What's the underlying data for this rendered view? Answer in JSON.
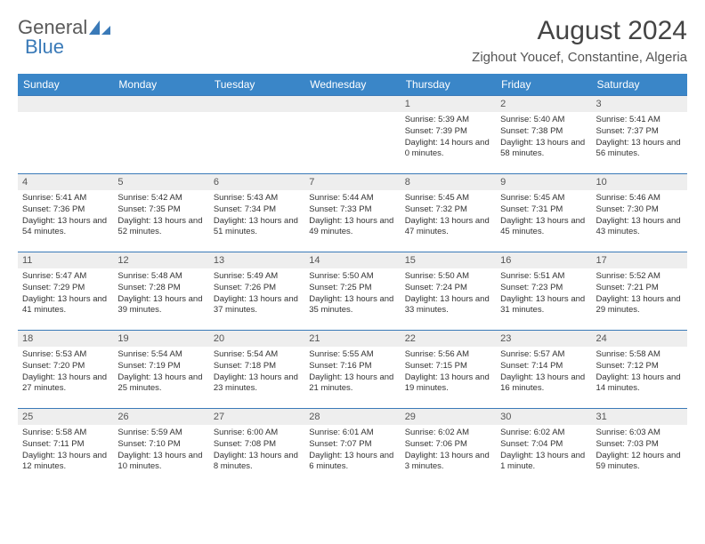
{
  "logo": {
    "text_gray": "General",
    "text_blue": "Blue"
  },
  "header": {
    "month_title": "August 2024",
    "location": "Zighout Youcef, Constantine, Algeria"
  },
  "colors": {
    "header_bg": "#3a86c8",
    "header_text": "#ffffff",
    "border": "#3a7ab8",
    "daynum_bg": "#eeeeee",
    "body_text": "#333333"
  },
  "weekdays": [
    "Sunday",
    "Monday",
    "Tuesday",
    "Wednesday",
    "Thursday",
    "Friday",
    "Saturday"
  ],
  "first_weekday_index": 4,
  "days": [
    {
      "n": 1,
      "sunrise": "5:39 AM",
      "sunset": "7:39 PM",
      "daylight": "14 hours and 0 minutes."
    },
    {
      "n": 2,
      "sunrise": "5:40 AM",
      "sunset": "7:38 PM",
      "daylight": "13 hours and 58 minutes."
    },
    {
      "n": 3,
      "sunrise": "5:41 AM",
      "sunset": "7:37 PM",
      "daylight": "13 hours and 56 minutes."
    },
    {
      "n": 4,
      "sunrise": "5:41 AM",
      "sunset": "7:36 PM",
      "daylight": "13 hours and 54 minutes."
    },
    {
      "n": 5,
      "sunrise": "5:42 AM",
      "sunset": "7:35 PM",
      "daylight": "13 hours and 52 minutes."
    },
    {
      "n": 6,
      "sunrise": "5:43 AM",
      "sunset": "7:34 PM",
      "daylight": "13 hours and 51 minutes."
    },
    {
      "n": 7,
      "sunrise": "5:44 AM",
      "sunset": "7:33 PM",
      "daylight": "13 hours and 49 minutes."
    },
    {
      "n": 8,
      "sunrise": "5:45 AM",
      "sunset": "7:32 PM",
      "daylight": "13 hours and 47 minutes."
    },
    {
      "n": 9,
      "sunrise": "5:45 AM",
      "sunset": "7:31 PM",
      "daylight": "13 hours and 45 minutes."
    },
    {
      "n": 10,
      "sunrise": "5:46 AM",
      "sunset": "7:30 PM",
      "daylight": "13 hours and 43 minutes."
    },
    {
      "n": 11,
      "sunrise": "5:47 AM",
      "sunset": "7:29 PM",
      "daylight": "13 hours and 41 minutes."
    },
    {
      "n": 12,
      "sunrise": "5:48 AM",
      "sunset": "7:28 PM",
      "daylight": "13 hours and 39 minutes."
    },
    {
      "n": 13,
      "sunrise": "5:49 AM",
      "sunset": "7:26 PM",
      "daylight": "13 hours and 37 minutes."
    },
    {
      "n": 14,
      "sunrise": "5:50 AM",
      "sunset": "7:25 PM",
      "daylight": "13 hours and 35 minutes."
    },
    {
      "n": 15,
      "sunrise": "5:50 AM",
      "sunset": "7:24 PM",
      "daylight": "13 hours and 33 minutes."
    },
    {
      "n": 16,
      "sunrise": "5:51 AM",
      "sunset": "7:23 PM",
      "daylight": "13 hours and 31 minutes."
    },
    {
      "n": 17,
      "sunrise": "5:52 AM",
      "sunset": "7:21 PM",
      "daylight": "13 hours and 29 minutes."
    },
    {
      "n": 18,
      "sunrise": "5:53 AM",
      "sunset": "7:20 PM",
      "daylight": "13 hours and 27 minutes."
    },
    {
      "n": 19,
      "sunrise": "5:54 AM",
      "sunset": "7:19 PM",
      "daylight": "13 hours and 25 minutes."
    },
    {
      "n": 20,
      "sunrise": "5:54 AM",
      "sunset": "7:18 PM",
      "daylight": "13 hours and 23 minutes."
    },
    {
      "n": 21,
      "sunrise": "5:55 AM",
      "sunset": "7:16 PM",
      "daylight": "13 hours and 21 minutes."
    },
    {
      "n": 22,
      "sunrise": "5:56 AM",
      "sunset": "7:15 PM",
      "daylight": "13 hours and 19 minutes."
    },
    {
      "n": 23,
      "sunrise": "5:57 AM",
      "sunset": "7:14 PM",
      "daylight": "13 hours and 16 minutes."
    },
    {
      "n": 24,
      "sunrise": "5:58 AM",
      "sunset": "7:12 PM",
      "daylight": "13 hours and 14 minutes."
    },
    {
      "n": 25,
      "sunrise": "5:58 AM",
      "sunset": "7:11 PM",
      "daylight": "13 hours and 12 minutes."
    },
    {
      "n": 26,
      "sunrise": "5:59 AM",
      "sunset": "7:10 PM",
      "daylight": "13 hours and 10 minutes."
    },
    {
      "n": 27,
      "sunrise": "6:00 AM",
      "sunset": "7:08 PM",
      "daylight": "13 hours and 8 minutes."
    },
    {
      "n": 28,
      "sunrise": "6:01 AM",
      "sunset": "7:07 PM",
      "daylight": "13 hours and 6 minutes."
    },
    {
      "n": 29,
      "sunrise": "6:02 AM",
      "sunset": "7:06 PM",
      "daylight": "13 hours and 3 minutes."
    },
    {
      "n": 30,
      "sunrise": "6:02 AM",
      "sunset": "7:04 PM",
      "daylight": "13 hours and 1 minute."
    },
    {
      "n": 31,
      "sunrise": "6:03 AM",
      "sunset": "7:03 PM",
      "daylight": "12 hours and 59 minutes."
    }
  ],
  "labels": {
    "sunrise_prefix": "Sunrise: ",
    "sunset_prefix": "Sunset: ",
    "daylight_prefix": "Daylight: "
  }
}
